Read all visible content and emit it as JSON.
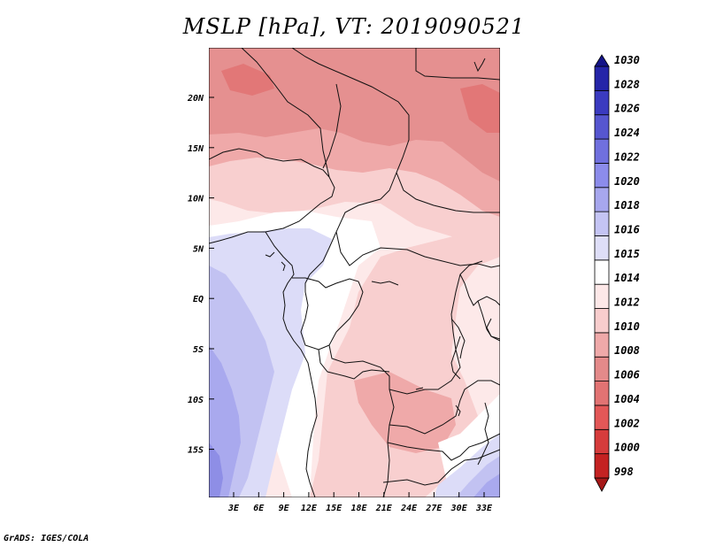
{
  "title": "MSLP [hPa], VT: 2019090521",
  "credit": "GrADS: IGES/COLA",
  "axes": {
    "lat_labels": [
      "20N",
      "15N",
      "10N",
      "5N",
      "EQ",
      "5S",
      "10S",
      "15S"
    ],
    "lon_labels": [
      "3E",
      "6E",
      "9E",
      "12E",
      "15E",
      "18E",
      "21E",
      "24E",
      "27E",
      "30E",
      "33E"
    ]
  },
  "colorbar": {
    "levels": [
      "998",
      "1000",
      "1002",
      "1004",
      "1006",
      "1008",
      "1010",
      "1012",
      "1014",
      "1015",
      "1016",
      "1018",
      "1020",
      "1022",
      "1024",
      "1026",
      "1028",
      "1030"
    ],
    "colors": [
      "#a51818",
      "#c42222",
      "#d63c3c",
      "#e35757",
      "#e27373",
      "#e48a8a",
      "#efa9a9",
      "#f8cdcd",
      "#fde8e8",
      "#ffffff",
      "#dedef8",
      "#c4c4f4",
      "#a7a7ee",
      "#8c8ceb",
      "#7070de",
      "#5656d0",
      "#3b3bc0",
      "#2525a8",
      "#141488"
    ]
  },
  "map": {
    "colors": {
      "p1008": "#e59090",
      "p1010": "#efa9a9",
      "p1012": "#f8cfcf",
      "p1014": "#fde9e9",
      "p1015": "#ffffff",
      "p1016": "#dcdcf8",
      "p1018": "#c2c2f2",
      "p1020": "#a9a9ee",
      "p1022": "#8e8ee6",
      "border": "#111111"
    }
  }
}
